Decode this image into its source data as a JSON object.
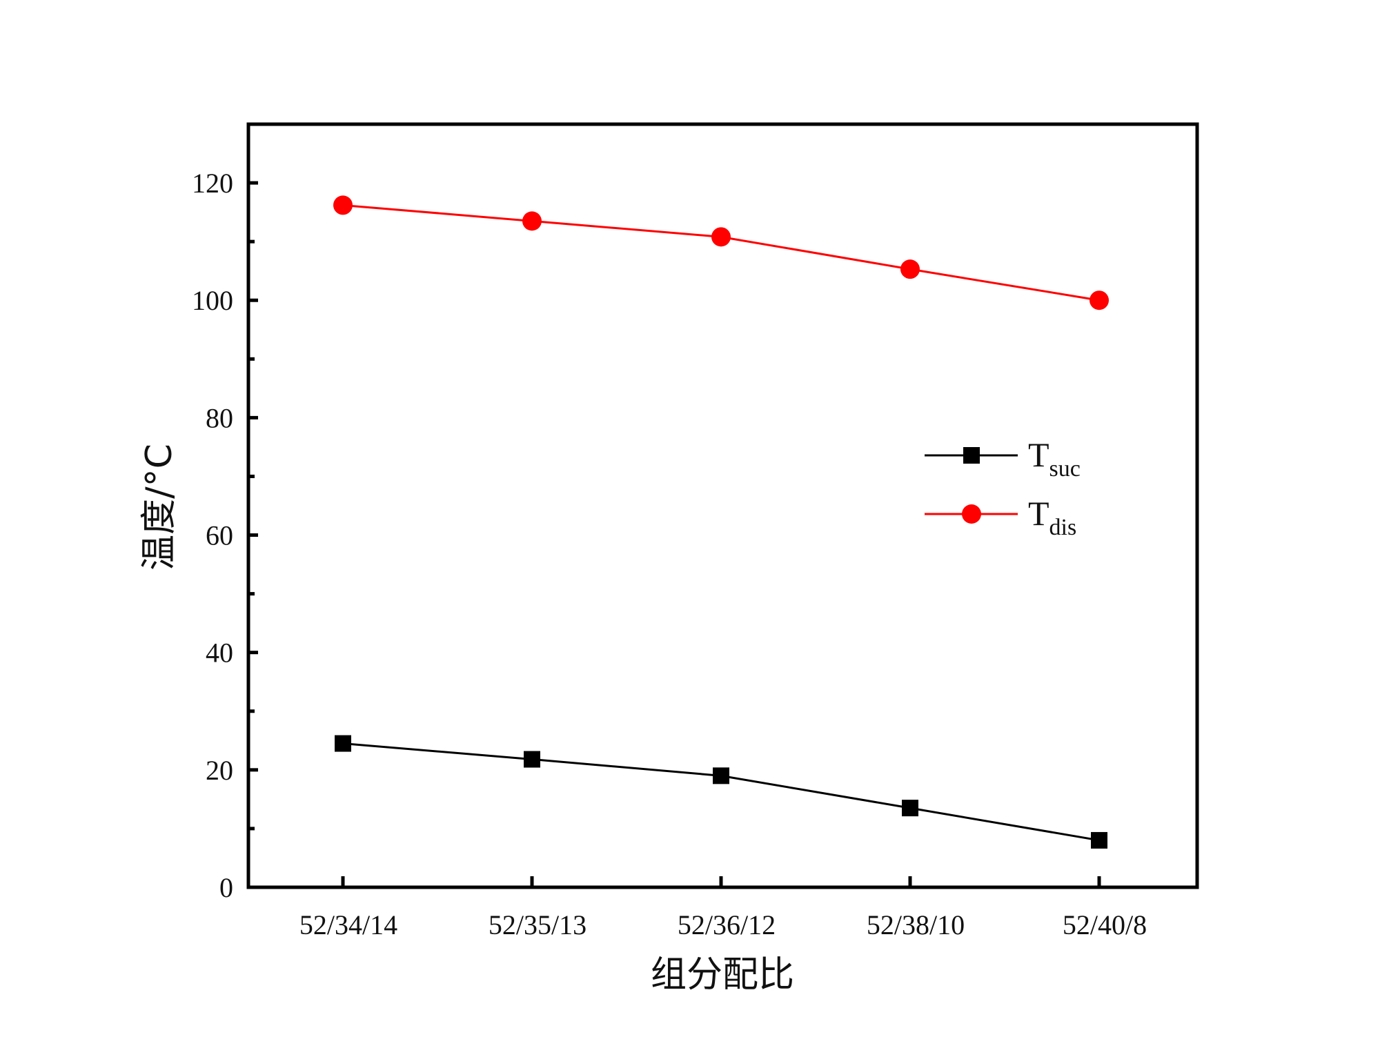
{
  "chart_data": {
    "type": "line",
    "xlabel": "组分配比",
    "ylabel": "温度/°C",
    "categories": [
      "52/34/14",
      "52/35/13",
      "52/36/12",
      "52/38/10",
      "52/40/8"
    ],
    "ylim": [
      0,
      130
    ],
    "yticks": [
      0,
      20,
      40,
      60,
      80,
      100,
      120
    ],
    "legend_position": "right",
    "series": [
      {
        "name": "T",
        "name_sub": "suc",
        "color": "#000000",
        "marker": "square",
        "values": [
          24.5,
          21.8,
          19.0,
          13.5,
          8.0
        ]
      },
      {
        "name": "T",
        "name_sub": "dis",
        "color": "#ff0000",
        "marker": "circle",
        "values": [
          116.2,
          113.5,
          110.8,
          105.3,
          100.0
        ]
      }
    ]
  }
}
